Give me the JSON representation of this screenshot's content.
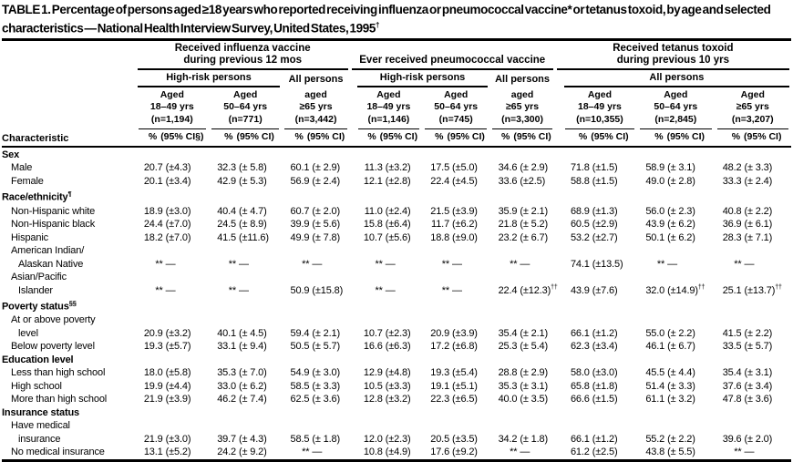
{
  "title": {
    "text": "TABLE 1. Percentage of persons aged ≥18 years who reported receiving influenza or pneumococcal vaccine* or tetanus toxoid, by age and selected characteristics — National Health Interview Survey, United States, 1995",
    "marker": "†"
  },
  "characteristic_header": "Characteristic",
  "groups": [
    {
      "title1": "Received influenza vaccine",
      "title2": "during previous 12 mos",
      "sub": [
        {
          "label": "High-risk persons"
        },
        {
          "label": "All persons"
        }
      ],
      "cols": [
        {
          "aged": "Aged",
          "range": "18–49 yrs",
          "n": "(n=1,194)",
          "pct": "%",
          "ci": "(95% CI§)"
        },
        {
          "aged": "Aged",
          "range": "50–64 yrs",
          "n": "(n=771)",
          "pct": "%",
          "ci": "(95% CI)"
        },
        {
          "aged": "aged",
          "range": "≥65 yrs",
          "n": "(n=3,442)",
          "pct": "%",
          "ci": "(95% CI)"
        }
      ]
    },
    {
      "title1": "Ever received pneumococcal vaccine",
      "title2": "",
      "sub": [
        {
          "label": "High-risk persons"
        },
        {
          "label": "All persons"
        }
      ],
      "cols": [
        {
          "aged": "Aged",
          "range": "18–49 yrs",
          "n": "(n=1,146)",
          "pct": "%",
          "ci": "(95% CI)"
        },
        {
          "aged": "Aged",
          "range": "50–64 yrs",
          "n": "(n=745)",
          "pct": "%",
          "ci": "(95% CI)"
        },
        {
          "aged": "aged",
          "range": "≥65 yrs",
          "n": "(n=3,300)",
          "pct": "%",
          "ci": "(95% CI)"
        }
      ]
    },
    {
      "title1": "Received tetanus toxoid",
      "title2": "during previous 10 yrs",
      "sub": [
        {
          "label": "All persons"
        }
      ],
      "cols": [
        {
          "aged": "Aged",
          "range": "18–49 yrs",
          "n": "(n=10,355)",
          "pct": "%",
          "ci": "(95% CI)"
        },
        {
          "aged": "Aged",
          "range": "50–64 yrs",
          "n": "(n=2,845)",
          "pct": "%",
          "ci": "(95% CI)"
        },
        {
          "aged": "Aged",
          "range": "≥65 yrs",
          "n": "(n=3,207)",
          "pct": "%",
          "ci": "(95% CI)"
        }
      ]
    }
  ],
  "rows": [
    {
      "type": "section",
      "label": "Sex",
      "marker": ""
    },
    {
      "type": "data",
      "label": "Male",
      "cells": [
        [
          "20.7",
          "(±4.3)"
        ],
        [
          "32.3",
          "(± 5.8)"
        ],
        [
          "60.1",
          "(± 2.9)"
        ],
        [
          "11.3",
          "(±3.2)"
        ],
        [
          "17.5",
          "(±5.0)"
        ],
        [
          "34.6",
          "(± 2.9)"
        ],
        [
          "71.8",
          "(±1.5)"
        ],
        [
          "58.9",
          "(± 3.1)"
        ],
        [
          "48.2",
          "(± 3.3)"
        ]
      ]
    },
    {
      "type": "data",
      "label": "Female",
      "cells": [
        [
          "20.1",
          "(±3.4)"
        ],
        [
          "42.9",
          "(± 5.3)"
        ],
        [
          "56.9",
          "(± 2.4)"
        ],
        [
          "12.1",
          "(±2.8)"
        ],
        [
          "22.4",
          "(±4.5)"
        ],
        [
          "33.6",
          "(±2.5)"
        ],
        [
          "58.8",
          "(±1.5)"
        ],
        [
          "49.0",
          "(± 2.8)"
        ],
        [
          "33.3",
          "(± 2.4)"
        ]
      ]
    },
    {
      "type": "section",
      "label": "Race/ethnicity",
      "marker": "¶"
    },
    {
      "type": "data",
      "label": "Non-Hispanic white",
      "cells": [
        [
          "18.9",
          "(±3.0)"
        ],
        [
          "40.4",
          "(± 4.7)"
        ],
        [
          "60.7",
          "(± 2.0)"
        ],
        [
          "11.0",
          "(±2.4)"
        ],
        [
          "21.5",
          "(±3.9)"
        ],
        [
          "35.9",
          "(± 2.1)"
        ],
        [
          "68.9",
          "(±1.3)"
        ],
        [
          "56.0",
          "(± 2.3)"
        ],
        [
          "40.8",
          "(± 2.2)"
        ]
      ]
    },
    {
      "type": "data",
      "label": "Non-Hispanic black",
      "cells": [
        [
          "24.4",
          "(±7.0)"
        ],
        [
          "24.5",
          "(± 8.9)"
        ],
        [
          "39.9",
          "(± 5.6)"
        ],
        [
          "15.8",
          "(±6.4)"
        ],
        [
          "11.7",
          "(±6.2)"
        ],
        [
          "21.8",
          "(± 5.2)"
        ],
        [
          "60.5",
          "(±2.9)"
        ],
        [
          "43.9",
          "(± 6.2)"
        ],
        [
          "36.9",
          "(± 6.1)"
        ]
      ]
    },
    {
      "type": "data",
      "label": "Hispanic",
      "cells": [
        [
          "18.2",
          "(±7.0)"
        ],
        [
          "41.5",
          "(±11.6)"
        ],
        [
          "49.9",
          "(± 7.8)"
        ],
        [
          "10.7",
          "(±5.6)"
        ],
        [
          "18.8",
          "(±9.0)"
        ],
        [
          "23.2",
          "(± 6.7)"
        ],
        [
          "53.2",
          "(±2.7)"
        ],
        [
          "50.1",
          "(± 6.2)"
        ],
        [
          "28.3",
          "(± 7.1)"
        ]
      ]
    },
    {
      "type": "data",
      "label": "American Indian/",
      "label2": "Alaskan Native",
      "cells": [
        [
          "**",
          "—"
        ],
        [
          "**",
          "—"
        ],
        [
          "**",
          "—"
        ],
        [
          "**",
          "—"
        ],
        [
          "**",
          "—"
        ],
        [
          "**",
          "—"
        ],
        [
          "74.1",
          "(±13.5)"
        ],
        [
          "**",
          "—"
        ],
        [
          "**",
          "—"
        ]
      ]
    },
    {
      "type": "data",
      "label": "Asian/Pacific",
      "label2": "Islander",
      "cells": [
        [
          "**",
          "—"
        ],
        [
          "**",
          "—"
        ],
        [
          "50.9",
          "(±15.8)"
        ],
        [
          "**",
          "—"
        ],
        [
          "**",
          "—"
        ],
        [
          "22.4",
          "(±12.3)",
          "††"
        ],
        [
          "43.9",
          "(±7.6)"
        ],
        [
          "32.0",
          "(±14.9)",
          "††"
        ],
        [
          "25.1",
          "(±13.7)",
          "††"
        ]
      ]
    },
    {
      "type": "section",
      "label": "Poverty status",
      "marker": "§§"
    },
    {
      "type": "data",
      "label": "At or above poverty",
      "label2": "level",
      "cells": [
        [
          "20.9",
          "(±3.2)"
        ],
        [
          "40.1",
          "(± 4.5)"
        ],
        [
          "59.4",
          "(± 2.1)"
        ],
        [
          "10.7",
          "(±2.3)"
        ],
        [
          "20.9",
          "(±3.9)"
        ],
        [
          "35.4",
          "(± 2.1)"
        ],
        [
          "66.1",
          "(±1.2)"
        ],
        [
          "55.0",
          "(± 2.2)"
        ],
        [
          "41.5",
          "(± 2.2)"
        ]
      ]
    },
    {
      "type": "data",
      "label": "Below poverty level",
      "cells": [
        [
          "19.3",
          "(±5.7)"
        ],
        [
          "33.1",
          "(± 9.4)"
        ],
        [
          "50.5",
          "(± 5.7)"
        ],
        [
          "16.6",
          "(±6.3)"
        ],
        [
          "17.2",
          "(±6.8)"
        ],
        [
          "25.3",
          "(± 5.4)"
        ],
        [
          "62.3",
          "(±3.4)"
        ],
        [
          "46.1",
          "(± 6.7)"
        ],
        [
          "33.5",
          "(± 5.7)"
        ]
      ]
    },
    {
      "type": "section",
      "label": "Education level",
      "marker": ""
    },
    {
      "type": "data",
      "label": "Less than high school",
      "cells": [
        [
          "18.0",
          "(±5.8)"
        ],
        [
          "35.3",
          "(± 7.0)"
        ],
        [
          "54.9",
          "(± 3.0)"
        ],
        [
          "12.9",
          "(±4.8)"
        ],
        [
          "19.3",
          "(±5.4)"
        ],
        [
          "28.8",
          "(± 2.9)"
        ],
        [
          "58.0",
          "(±3.0)"
        ],
        [
          "45.5",
          "(± 4.4)"
        ],
        [
          "35.4",
          "(± 3.1)"
        ]
      ]
    },
    {
      "type": "data",
      "label": "High school",
      "cells": [
        [
          "19.9",
          "(±4.4)"
        ],
        [
          "33.0",
          "(± 6.2)"
        ],
        [
          "58.5",
          "(± 3.3)"
        ],
        [
          "10.5",
          "(±3.3)"
        ],
        [
          "19.1",
          "(±5.1)"
        ],
        [
          "35.3",
          "(± 3.1)"
        ],
        [
          "65.8",
          "(±1.8)"
        ],
        [
          "51.4",
          "(± 3.3)"
        ],
        [
          "37.6",
          "(± 3.4)"
        ]
      ]
    },
    {
      "type": "data",
      "label": "More than high school",
      "cells": [
        [
          "21.9",
          "(±3.9)"
        ],
        [
          "46.2",
          "(± 7.4)"
        ],
        [
          "62.5",
          "(± 3.6)"
        ],
        [
          "12.8",
          "(±3.2)"
        ],
        [
          "22.3",
          "(±6.5)"
        ],
        [
          "40.0",
          "(± 3.5)"
        ],
        [
          "66.6",
          "(±1.5)"
        ],
        [
          "61.1",
          "(± 3.2)"
        ],
        [
          "47.8",
          "(± 3.6)"
        ]
      ]
    },
    {
      "type": "section",
      "label": "Insurance status",
      "marker": ""
    },
    {
      "type": "data",
      "label": "Have medical",
      "label2": "insurance",
      "cells": [
        [
          "21.9",
          "(±3.0)"
        ],
        [
          "39.7",
          "(± 4.3)"
        ],
        [
          "58.5",
          "(± 1.8)"
        ],
        [
          "12.0",
          "(±2.3)"
        ],
        [
          "20.5",
          "(±3.5)"
        ],
        [
          "34.2",
          "(± 1.8)"
        ],
        [
          "66.1",
          "(±1.2)"
        ],
        [
          "55.2",
          "(± 2.2)"
        ],
        [
          "39.6",
          "(± 2.0)"
        ]
      ]
    },
    {
      "type": "data",
      "label": "No medical insurance",
      "cells": [
        [
          "13.1",
          "(±5.2)"
        ],
        [
          "24.2",
          "(± 9.2)"
        ],
        [
          "**",
          "—"
        ],
        [
          "10.8",
          "(±4.9)"
        ],
        [
          "17.6",
          "(±9.2)"
        ],
        [
          "**",
          "—"
        ],
        [
          "61.2",
          "(±2.5)"
        ],
        [
          "43.8",
          "(± 5.5)"
        ],
        [
          "**",
          "—"
        ]
      ]
    }
  ]
}
